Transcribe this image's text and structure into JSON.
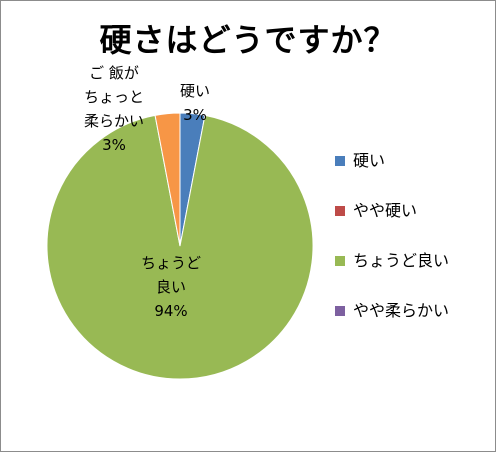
{
  "chart_data": {
    "type": "pie",
    "title": "硬さはどうですか？",
    "slices": [
      {
        "name": "硬い",
        "value": 3,
        "color": "#4a7ebb",
        "label_lines": [
          "硬い",
          "3%"
        ]
      },
      {
        "name": "やや硬い",
        "value": 0,
        "color": "#be4b48",
        "label_lines": []
      },
      {
        "name": "ちょうど良い",
        "value": 94,
        "color": "#98b954",
        "label_lines": [
          "ちょうど",
          "良い",
          "94%"
        ]
      },
      {
        "name": "やや柔らかい",
        "value": 0,
        "color": "#7d60a0",
        "label_lines": []
      },
      {
        "name": "ご飯がちょっと柔らかい",
        "value": 3,
        "color": "#f79646",
        "label_lines": [
          "ご 飯が",
          "ちょっと",
          "柔らかい",
          "3%"
        ]
      }
    ],
    "legend": {
      "position": "right",
      "entries": [
        {
          "label": "硬い",
          "color": "#4a7ebb"
        },
        {
          "label": "やや硬い",
          "color": "#be4b48"
        },
        {
          "label": "ちょうど良い",
          "color": "#98b954"
        },
        {
          "label": "やや柔らかい",
          "color": "#7d60a0"
        }
      ]
    }
  }
}
